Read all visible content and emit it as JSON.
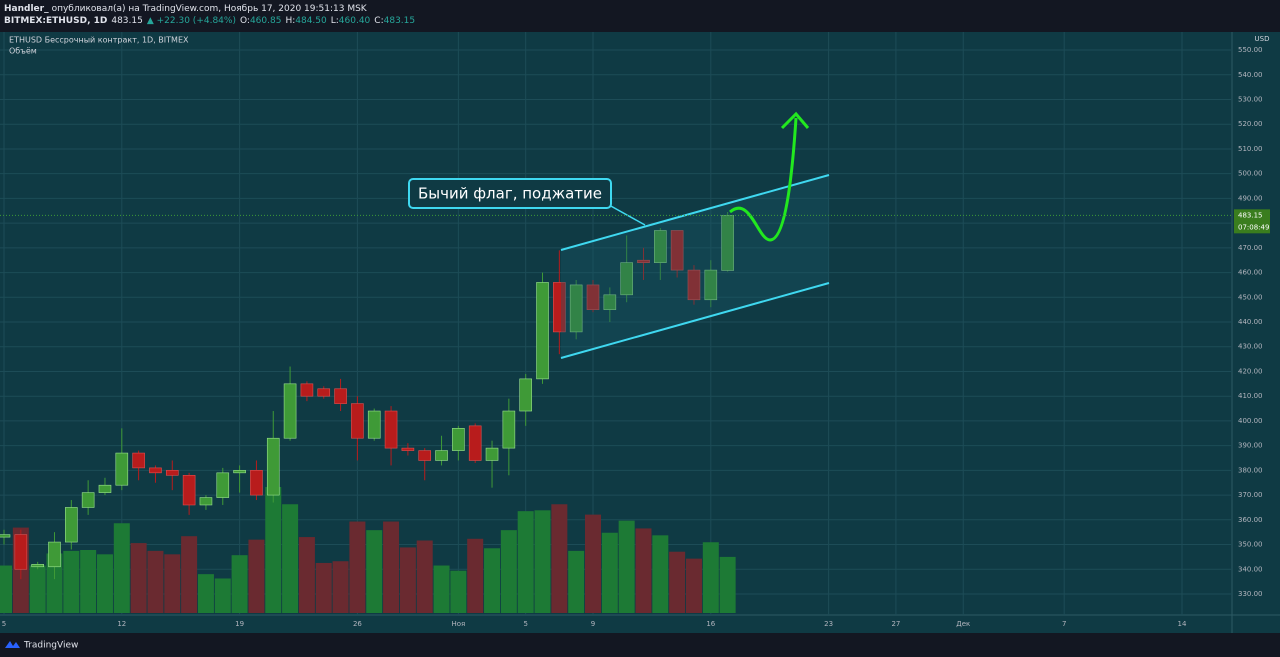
{
  "header": {
    "author": "Handler_",
    "published": "опубликовал(а) на TradingView.com, Ноябрь 17, 2020 19:51:13 MSK",
    "symbol": "BITMEX:ETHUSD, 1D",
    "price": "483.15",
    "change": "▲ +22.30 (+4.84%)",
    "ohlc": [
      {
        "label": "O:",
        "value": "460.85"
      },
      {
        "label": "H:",
        "value": "484.50"
      },
      {
        "label": "L:",
        "value": "460.40"
      },
      {
        "label": "C:",
        "value": "483.15"
      }
    ]
  },
  "footer": "TradingView",
  "chart_data": {
    "type": "candlestick",
    "x": [
      "2020-10-05",
      "2020-10-06",
      "2020-10-07",
      "2020-10-08",
      "2020-10-09",
      "2020-10-10",
      "2020-10-11",
      "2020-10-12",
      "2020-10-13",
      "2020-10-14",
      "2020-10-15",
      "2020-10-16",
      "2020-10-17",
      "2020-10-18",
      "2020-10-19",
      "2020-10-20",
      "2020-10-21",
      "2020-10-22",
      "2020-10-23",
      "2020-10-24",
      "2020-10-25",
      "2020-10-26",
      "2020-10-27",
      "2020-10-28",
      "2020-10-29",
      "2020-10-30",
      "2020-10-31",
      "2020-11-01",
      "2020-11-02",
      "2020-11-03",
      "2020-11-04",
      "2020-11-05",
      "2020-11-06",
      "2020-11-07",
      "2020-11-08",
      "2020-11-09",
      "2020-11-10",
      "2020-11-11",
      "2020-11-12",
      "2020-11-13",
      "2020-11-14",
      "2020-11-15",
      "2020-11-16",
      "2020-11-17"
    ],
    "series": [
      {
        "name": "ETHUSD Бессрочный контракт, 1D, BITMEX",
        "up_color": "#3f9a37",
        "down_color": "#b81c1c",
        "open": [
          353,
          354,
          341,
          341,
          351,
          365,
          371,
          374,
          387,
          381,
          380,
          378,
          366,
          369,
          379,
          380,
          370,
          393,
          415,
          413,
          413,
          407,
          393,
          404,
          389,
          388,
          384,
          388,
          398,
          384,
          389,
          404,
          417,
          456,
          436,
          455,
          445,
          451,
          465,
          464,
          477,
          461,
          449,
          460.85
        ],
        "high": [
          356,
          356,
          343,
          355,
          368,
          376,
          377,
          397,
          388,
          382,
          384,
          379,
          370,
          381,
          382,
          384,
          404,
          422,
          416,
          414,
          417,
          410,
          405,
          406,
          391,
          389,
          394,
          398,
          399,
          392,
          409,
          419,
          460,
          469,
          457,
          457,
          454,
          475,
          470,
          478,
          477,
          463,
          465,
          484.5
        ],
        "low": [
          350,
          336,
          340,
          336,
          348,
          362,
          370,
          372,
          376,
          375,
          372,
          362,
          364,
          366,
          371,
          368,
          367,
          392,
          408,
          409,
          404,
          384,
          392,
          382,
          386,
          376,
          382,
          384,
          383,
          373,
          378,
          398,
          415,
          427,
          433,
          444,
          440,
          448,
          457,
          457,
          458,
          447,
          446,
          460.4
        ],
        "close": [
          354,
          340,
          342,
          351,
          365,
          371,
          374,
          387,
          381,
          379,
          378,
          366,
          369,
          379,
          380,
          370,
          393,
          415,
          410,
          410,
          407,
          393,
          404,
          389,
          388,
          384,
          388,
          397,
          384,
          389,
          404,
          417,
          456,
          436,
          455,
          445,
          451,
          464,
          464,
          477,
          461,
          449,
          461,
          483.15
        ]
      }
    ],
    "volume": {
      "name": "Объём",
      "up_color": "#1d7a35",
      "down_color": "#6a2a30",
      "values": [
        55,
        99,
        55,
        69,
        72,
        73,
        68,
        104,
        81,
        72,
        68,
        89,
        45,
        40,
        67,
        85,
        146,
        126,
        88,
        58,
        60,
        106,
        96,
        106,
        76,
        84,
        55,
        49,
        86,
        75,
        96,
        118,
        119,
        126,
        72,
        114,
        93,
        107,
        98,
        90,
        71,
        63,
        82,
        65
      ]
    },
    "ylim": [
      321.5,
      557.3
    ],
    "yticks": [
      {
        "value": 330,
        "label": "330.00"
      },
      {
        "value": 340,
        "label": "340.00"
      },
      {
        "value": 350,
        "label": "350.00"
      },
      {
        "value": 360,
        "label": "360.00"
      },
      {
        "value": 370,
        "label": "370.00"
      },
      {
        "value": 380,
        "label": "380.00"
      },
      {
        "value": 390,
        "label": "390.00"
      },
      {
        "value": 400,
        "label": "400.00"
      },
      {
        "value": 410,
        "label": "410.00"
      },
      {
        "value": 420,
        "label": "420.00"
      },
      {
        "value": 430,
        "label": "430.00"
      },
      {
        "value": 440,
        "label": "440.00"
      },
      {
        "value": 450,
        "label": "450.00"
      },
      {
        "value": 460,
        "label": "460.00"
      },
      {
        "value": 470,
        "label": "470.00"
      },
      {
        "value": 480,
        "label": "480.00"
      },
      {
        "value": 490,
        "label": "490.00"
      },
      {
        "value": 500,
        "label": "500.00"
      },
      {
        "value": 510,
        "label": "510.00"
      },
      {
        "value": 520,
        "label": "520.00"
      },
      {
        "value": 530,
        "label": "530.00"
      },
      {
        "value": 540,
        "label": "540.00"
      },
      {
        "value": 550,
        "label": "550.00"
      }
    ],
    "xlim": [
      "2020-10-05",
      "2020-12-14"
    ],
    "xticks": [
      {
        "value": "2020-10-05",
        "label": "5"
      },
      {
        "value": "2020-10-12",
        "label": "12"
      },
      {
        "value": "2020-10-19",
        "label": "19"
      },
      {
        "value": "2020-10-26",
        "label": "26"
      },
      {
        "value": "2020-11-01",
        "label": "Ноя"
      },
      {
        "value": "2020-11-05",
        "label": "5"
      },
      {
        "value": "2020-11-09",
        "label": "9"
      },
      {
        "value": "2020-11-16",
        "label": "16"
      },
      {
        "value": "2020-11-23",
        "label": "23"
      },
      {
        "value": "2020-11-27",
        "label": "27"
      },
      {
        "value": "2020-12-01",
        "label": "Дек"
      },
      {
        "value": "2020-12-07",
        "label": "7"
      },
      {
        "value": "2020-12-14",
        "label": "14"
      }
    ],
    "grid": true,
    "unit": "USD",
    "countdown": "07:08:49",
    "annotation": "Бычий флаг, поджатие"
  }
}
